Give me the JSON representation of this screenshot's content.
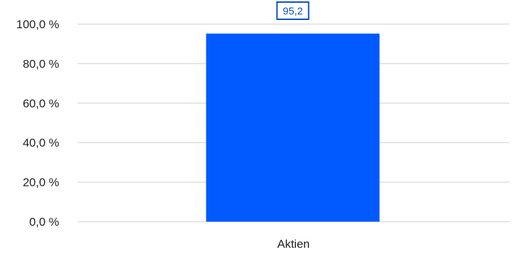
{
  "chart_data": {
    "type": "bar",
    "categories": [
      "Aktien"
    ],
    "values": [
      95.2
    ],
    "value_labels": [
      "95,2"
    ],
    "ylim": [
      0,
      100
    ],
    "yticks": [
      0,
      20,
      40,
      60,
      80,
      100
    ],
    "ytick_labels": [
      "0,0 %",
      "20,0 %",
      "40,0 %",
      "60,0 %",
      "80,0 %",
      "100,0 %"
    ],
    "grid": true,
    "legend": "none",
    "colors": {
      "bar": "#005aff",
      "grid": "#dddddd",
      "label_border": "#0a4fbf",
      "label_text": "#0a4fbf"
    }
  }
}
